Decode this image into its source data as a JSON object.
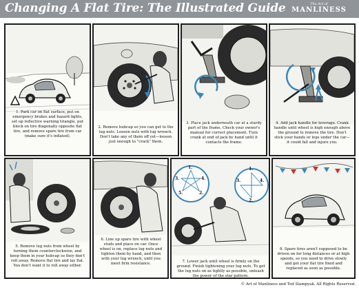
{
  "header": {
    "title": "Changing A Flat Tire: The Illustrated Guide",
    "logo_small": "The Art of",
    "logo_main": "MANLINESS"
  },
  "colors": {
    "header_bg": "#8f9499",
    "ink": "#1d1d1d",
    "arrow_blue": "#3a86b8",
    "paper": "#fbfbf8"
  },
  "steps": [
    {
      "caption": "1. Park car on flat surface, put on emergency brakes and hazard lights, set up reflective warning triangle, put block on tire diagonally opposite flat tire, and remove spare tire from car (make sure it's inflated)."
    },
    {
      "caption": "2. Remove hubcap so you can get to the lug nuts. Loosen nuts with lug wrench. Don't take any of them off yet—loosen just enough to \"crack\" them."
    },
    {
      "caption": "3. Place jack underneath car at a sturdy part of the frame. Check your owner's manual for correct placement. Turn crank at end of jack by hand until it contacts the frame."
    },
    {
      "caption": "4. Add jack handle for leverage. Crank handle until wheel is high enough above the ground to remove the tire. Don't stick your hands or legs under the car—it could fall and injure you."
    },
    {
      "caption": "5. Remove lug nuts from wheel by turning them counterclockwise, and keep them in your hubcap so they don't roll away. Remove flat tire and lay flat. You don't want it to roll away either."
    },
    {
      "caption": "6. Line up spare tire with wheel studs and place on car. Once wheel is on, replace lug nuts and tighten them by hand, and then with your lug wrench, until you meet firm resistance."
    },
    {
      "caption": "7. Lower jack until wheel is firmly on the ground. Finish tightening your lug nuts. To get the lug nuts on as tightly as possible, unleash the power of the star pattern."
    },
    {
      "caption": "8. Spare tires aren't supposed to be driven on for long distances or at high speeds, so you need to drive slowly and get your flat tire fixed and replaced as soon as possible."
    }
  ],
  "star_pattern": {
    "left": [
      "1.",
      "2.",
      "3.",
      "4.",
      "5."
    ],
    "right": [
      "1.",
      "2.",
      "3.",
      "4."
    ]
  },
  "footer": "© Art of Manliness and Ted Slampyak. All Rights Reserved."
}
